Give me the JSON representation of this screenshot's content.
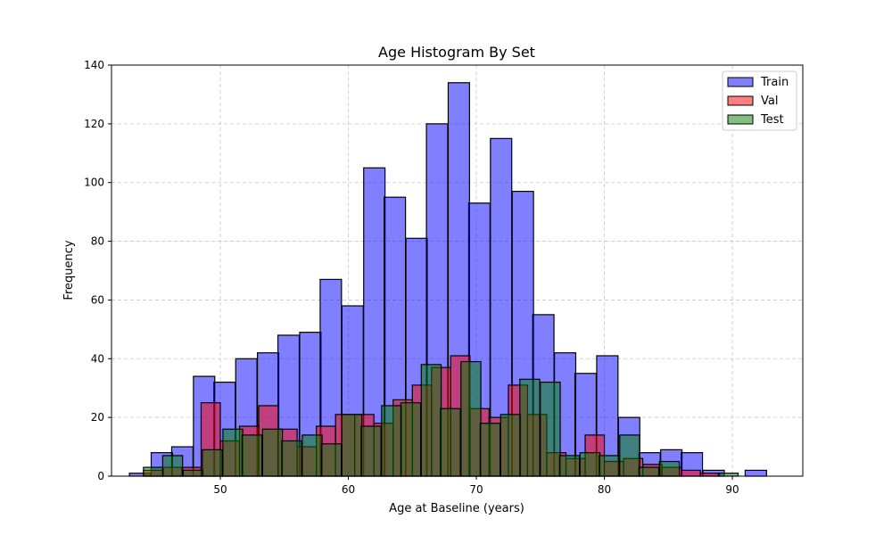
{
  "chart_data": {
    "type": "bar",
    "title": "Age Histogram By Set",
    "xlabel": "Age at Baseline (years)",
    "ylabel": "Frequency",
    "xlim": [
      41.5,
      95.5
    ],
    "ylim": [
      0,
      140
    ],
    "xticks": [
      50,
      60,
      70,
      80,
      90
    ],
    "yticks": [
      0,
      20,
      40,
      60,
      80,
      100,
      120,
      140
    ],
    "grid": true,
    "legend_position": "top-right",
    "series": [
      {
        "name": "Train",
        "color": "#0000ff",
        "alpha": 0.5,
        "bin_width": 1.665,
        "bins": [
          [
            42.9,
            1
          ],
          [
            44.6,
            8
          ],
          [
            46.2,
            10
          ],
          [
            47.9,
            34
          ],
          [
            49.5,
            32
          ],
          [
            51.2,
            40
          ],
          [
            52.9,
            42
          ],
          [
            54.5,
            48
          ],
          [
            56.2,
            49
          ],
          [
            57.8,
            67
          ],
          [
            59.5,
            58
          ],
          [
            61.2,
            105
          ],
          [
            62.8,
            95
          ],
          [
            64.5,
            81
          ],
          [
            66.1,
            120
          ],
          [
            67.8,
            134
          ],
          [
            69.4,
            93
          ],
          [
            71.1,
            115
          ],
          [
            72.8,
            97
          ],
          [
            74.4,
            55
          ],
          [
            76.1,
            42
          ],
          [
            77.7,
            35
          ],
          [
            79.4,
            41
          ],
          [
            81.1,
            20
          ],
          [
            82.7,
            8
          ],
          [
            84.4,
            9
          ],
          [
            86.0,
            8
          ],
          [
            87.7,
            2
          ],
          [
            89.4,
            0
          ],
          [
            91.0,
            2
          ]
        ]
      },
      {
        "name": "Val",
        "color": "#ff0000",
        "alpha": 0.5,
        "bin_width": 1.5,
        "bins": [
          [
            44.0,
            2
          ],
          [
            45.5,
            3
          ],
          [
            47.0,
            3
          ],
          [
            48.5,
            25
          ],
          [
            50.0,
            12
          ],
          [
            51.5,
            17
          ],
          [
            53.0,
            24
          ],
          [
            54.5,
            16
          ],
          [
            56.0,
            10
          ],
          [
            57.5,
            17
          ],
          [
            59.0,
            21
          ],
          [
            60.5,
            21
          ],
          [
            62.0,
            18
          ],
          [
            63.5,
            26
          ],
          [
            65.0,
            31
          ],
          [
            66.5,
            37
          ],
          [
            68.0,
            41
          ],
          [
            69.5,
            23
          ],
          [
            71.0,
            20
          ],
          [
            72.5,
            31
          ],
          [
            74.0,
            21
          ],
          [
            75.5,
            8
          ],
          [
            77.0,
            6
          ],
          [
            78.5,
            14
          ],
          [
            80.0,
            5
          ],
          [
            81.5,
            6
          ],
          [
            83.0,
            4
          ],
          [
            84.5,
            3
          ],
          [
            86.0,
            2
          ],
          [
            87.5,
            1
          ]
        ]
      },
      {
        "name": "Test",
        "color": "#008000",
        "alpha": 0.5,
        "bin_width": 1.55,
        "bins": [
          [
            44.0,
            3
          ],
          [
            45.5,
            7
          ],
          [
            47.1,
            2
          ],
          [
            48.6,
            9
          ],
          [
            50.2,
            16
          ],
          [
            51.7,
            14
          ],
          [
            53.3,
            16
          ],
          [
            54.8,
            12
          ],
          [
            56.4,
            14
          ],
          [
            57.9,
            11
          ],
          [
            59.5,
            21
          ],
          [
            61.0,
            17
          ],
          [
            62.6,
            24
          ],
          [
            64.1,
            25
          ],
          [
            65.7,
            38
          ],
          [
            67.2,
            23
          ],
          [
            68.8,
            39
          ],
          [
            70.3,
            18
          ],
          [
            71.9,
            21
          ],
          [
            73.4,
            33
          ],
          [
            75.0,
            32
          ],
          [
            76.5,
            7
          ],
          [
            78.1,
            8
          ],
          [
            79.6,
            7
          ],
          [
            81.2,
            14
          ],
          [
            82.7,
            3
          ],
          [
            84.3,
            5
          ],
          [
            85.8,
            0
          ],
          [
            87.4,
            0
          ],
          [
            88.9,
            1
          ]
        ]
      }
    ]
  }
}
